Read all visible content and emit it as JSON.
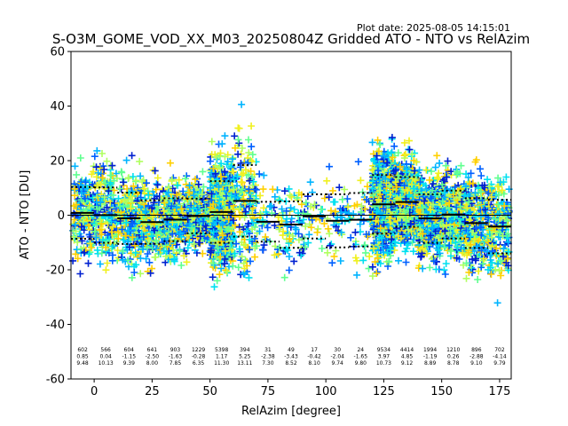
{
  "plot_date": "Plot date: 2025-08-05 14:15:01",
  "chart_data": {
    "type": "scatter",
    "title": "S-O3M_GOME_VOD_XX_M03_20250804Z Gridded ATO - NTO vs RelAzim",
    "xlabel": "RelAzim [degree]",
    "ylabel": "ATO - NTO [DU]",
    "xlim": [
      -10,
      180
    ],
    "ylim": [
      -60,
      60
    ],
    "xticks": [
      0,
      25,
      50,
      75,
      100,
      125,
      150,
      175
    ],
    "yticks": [
      -60,
      -40,
      -20,
      0,
      20,
      40,
      60
    ],
    "grid": false,
    "zero_line": 0,
    "point_colors": [
      "#0020d0",
      "#0060ff",
      "#00b4ff",
      "#00e0f0",
      "#60ff90",
      "#b0ff60",
      "#f0f020",
      "#ffd000"
    ],
    "bins": [
      {
        "x0": -10,
        "x1": 0,
        "count": "602",
        "mean": 0.85,
        "std": 9.48
      },
      {
        "x0": 0,
        "x1": 10,
        "count": "566",
        "mean": 0.04,
        "std": 10.13
      },
      {
        "x0": 10,
        "x1": 20,
        "count": "604",
        "mean": -1.15,
        "std": 9.39
      },
      {
        "x0": 20,
        "x1": 30,
        "count": "641",
        "mean": -2.5,
        "std": 8.0
      },
      {
        "x0": 30,
        "x1": 40,
        "count": "903",
        "mean": -1.63,
        "std": 7.85
      },
      {
        "x0": 40,
        "x1": 50,
        "count": "1229",
        "mean": -0.28,
        "std": 6.35
      },
      {
        "x0": 50,
        "x1": 60,
        "count": "5398",
        "mean": 1.17,
        "std": 11.3
      },
      {
        "x0": 60,
        "x1": 70,
        "count": "394",
        "mean": 5.25,
        "std": 13.11
      },
      {
        "x0": 70,
        "x1": 80,
        "count": "31",
        "mean": -2.38,
        "std": 7.3
      },
      {
        "x0": 80,
        "x1": 90,
        "count": "49",
        "mean": -3.43,
        "std": 8.52
      },
      {
        "x0": 90,
        "x1": 100,
        "count": "17",
        "mean": -0.42,
        "std": 8.1
      },
      {
        "x0": 100,
        "x1": 110,
        "count": "30",
        "mean": -2.04,
        "std": 9.74
      },
      {
        "x0": 110,
        "x1": 120,
        "count": "24",
        "mean": -1.65,
        "std": 9.8
      },
      {
        "x0": 120,
        "x1": 130,
        "count": "9534",
        "mean": 3.97,
        "std": 10.73
      },
      {
        "x0": 130,
        "x1": 140,
        "count": "4414",
        "mean": 4.85,
        "std": 9.12
      },
      {
        "x0": 140,
        "x1": 150,
        "count": "1994",
        "mean": -1.19,
        "std": 8.89
      },
      {
        "x0": 150,
        "x1": 160,
        "count": "1210",
        "mean": 0.26,
        "std": 8.78
      },
      {
        "x0": 160,
        "x1": 170,
        "count": "896",
        "mean": -2.88,
        "std": 9.1
      },
      {
        "x0": 170,
        "x1": 180,
        "count": "702",
        "mean": -4.14,
        "std": 9.79
      }
    ]
  }
}
